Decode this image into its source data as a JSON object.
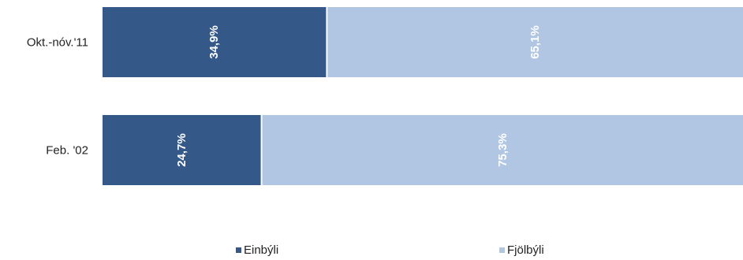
{
  "chart_data": {
    "type": "bar",
    "orientation": "horizontal",
    "stacked": "percent",
    "categories": [
      "Okt.-nóv.'11",
      "Feb. '02"
    ],
    "series": [
      {
        "name": "Einbýli",
        "values": [
          34.9,
          24.7
        ],
        "labels": [
          "34,9%",
          "24,7%"
        ],
        "color": "#345888"
      },
      {
        "name": "Fjölbýli",
        "values": [
          65.1,
          75.3
        ],
        "labels": [
          "65,1%",
          "75,3%"
        ],
        "color": "#b1c6e2"
      }
    ],
    "xlim": [
      0,
      100
    ],
    "grid": false,
    "legend_position": "bottom"
  }
}
